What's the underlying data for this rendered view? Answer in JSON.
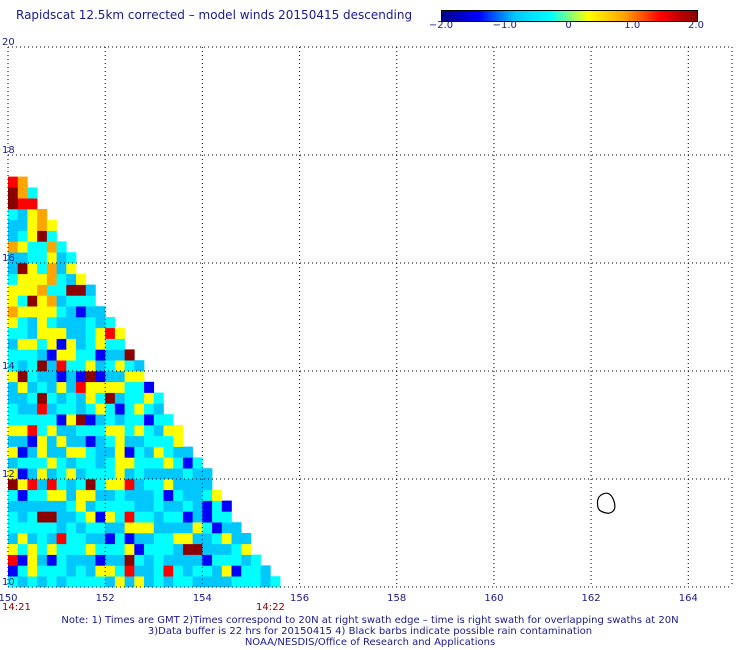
{
  "title": "Rapidscat 12.5km corrected – model winds 20150415 descending",
  "colorbar": {
    "ticks": [
      "−2.0",
      "−1.0",
      "0",
      "1.0",
      "2.0"
    ],
    "tick_values": [
      -2.0,
      -1.0,
      0,
      1.0,
      2.0
    ],
    "range": [
      -2.0,
      2.0
    ],
    "colors": [
      "#00008b",
      "#0000ff",
      "#00c8ff",
      "#00ffff",
      "#ffff00",
      "#ffa500",
      "#ff0000",
      "#8b0000"
    ]
  },
  "axes": {
    "lat_labels": [
      "20",
      "18",
      "16",
      "14",
      "12",
      "10"
    ],
    "lat_values": [
      20,
      18,
      16,
      14,
      12,
      10
    ],
    "lon_labels": [
      "150",
      "152",
      "154",
      "156",
      "158",
      "160",
      "162",
      "164"
    ],
    "lon_values": [
      150,
      152,
      154,
      156,
      158,
      160,
      162,
      164
    ],
    "lat_range": [
      10,
      20
    ],
    "lon_range": [
      150,
      164.9
    ]
  },
  "time_labels": [
    "14:21",
    "14:22"
  ],
  "notes": [
    "Note: 1) Times are GMT 2)Times correspond to 20N at right swath edge – time is right swath for overlapping swaths at 20N",
    "3)Data buffer is 22 hrs for 20150415 4) Black barbs indicate possible rain contamination",
    "NOAA/NESDIS/Office of Research and Applications"
  ],
  "swath": {
    "cell_deg": 0.2,
    "top_lat": 17.5,
    "edge_lon_at_top": 150.2,
    "edge_lon_at_bottom": 155.4
  },
  "contour": {
    "center_lon": 162.3,
    "center_lat": 11.55
  }
}
